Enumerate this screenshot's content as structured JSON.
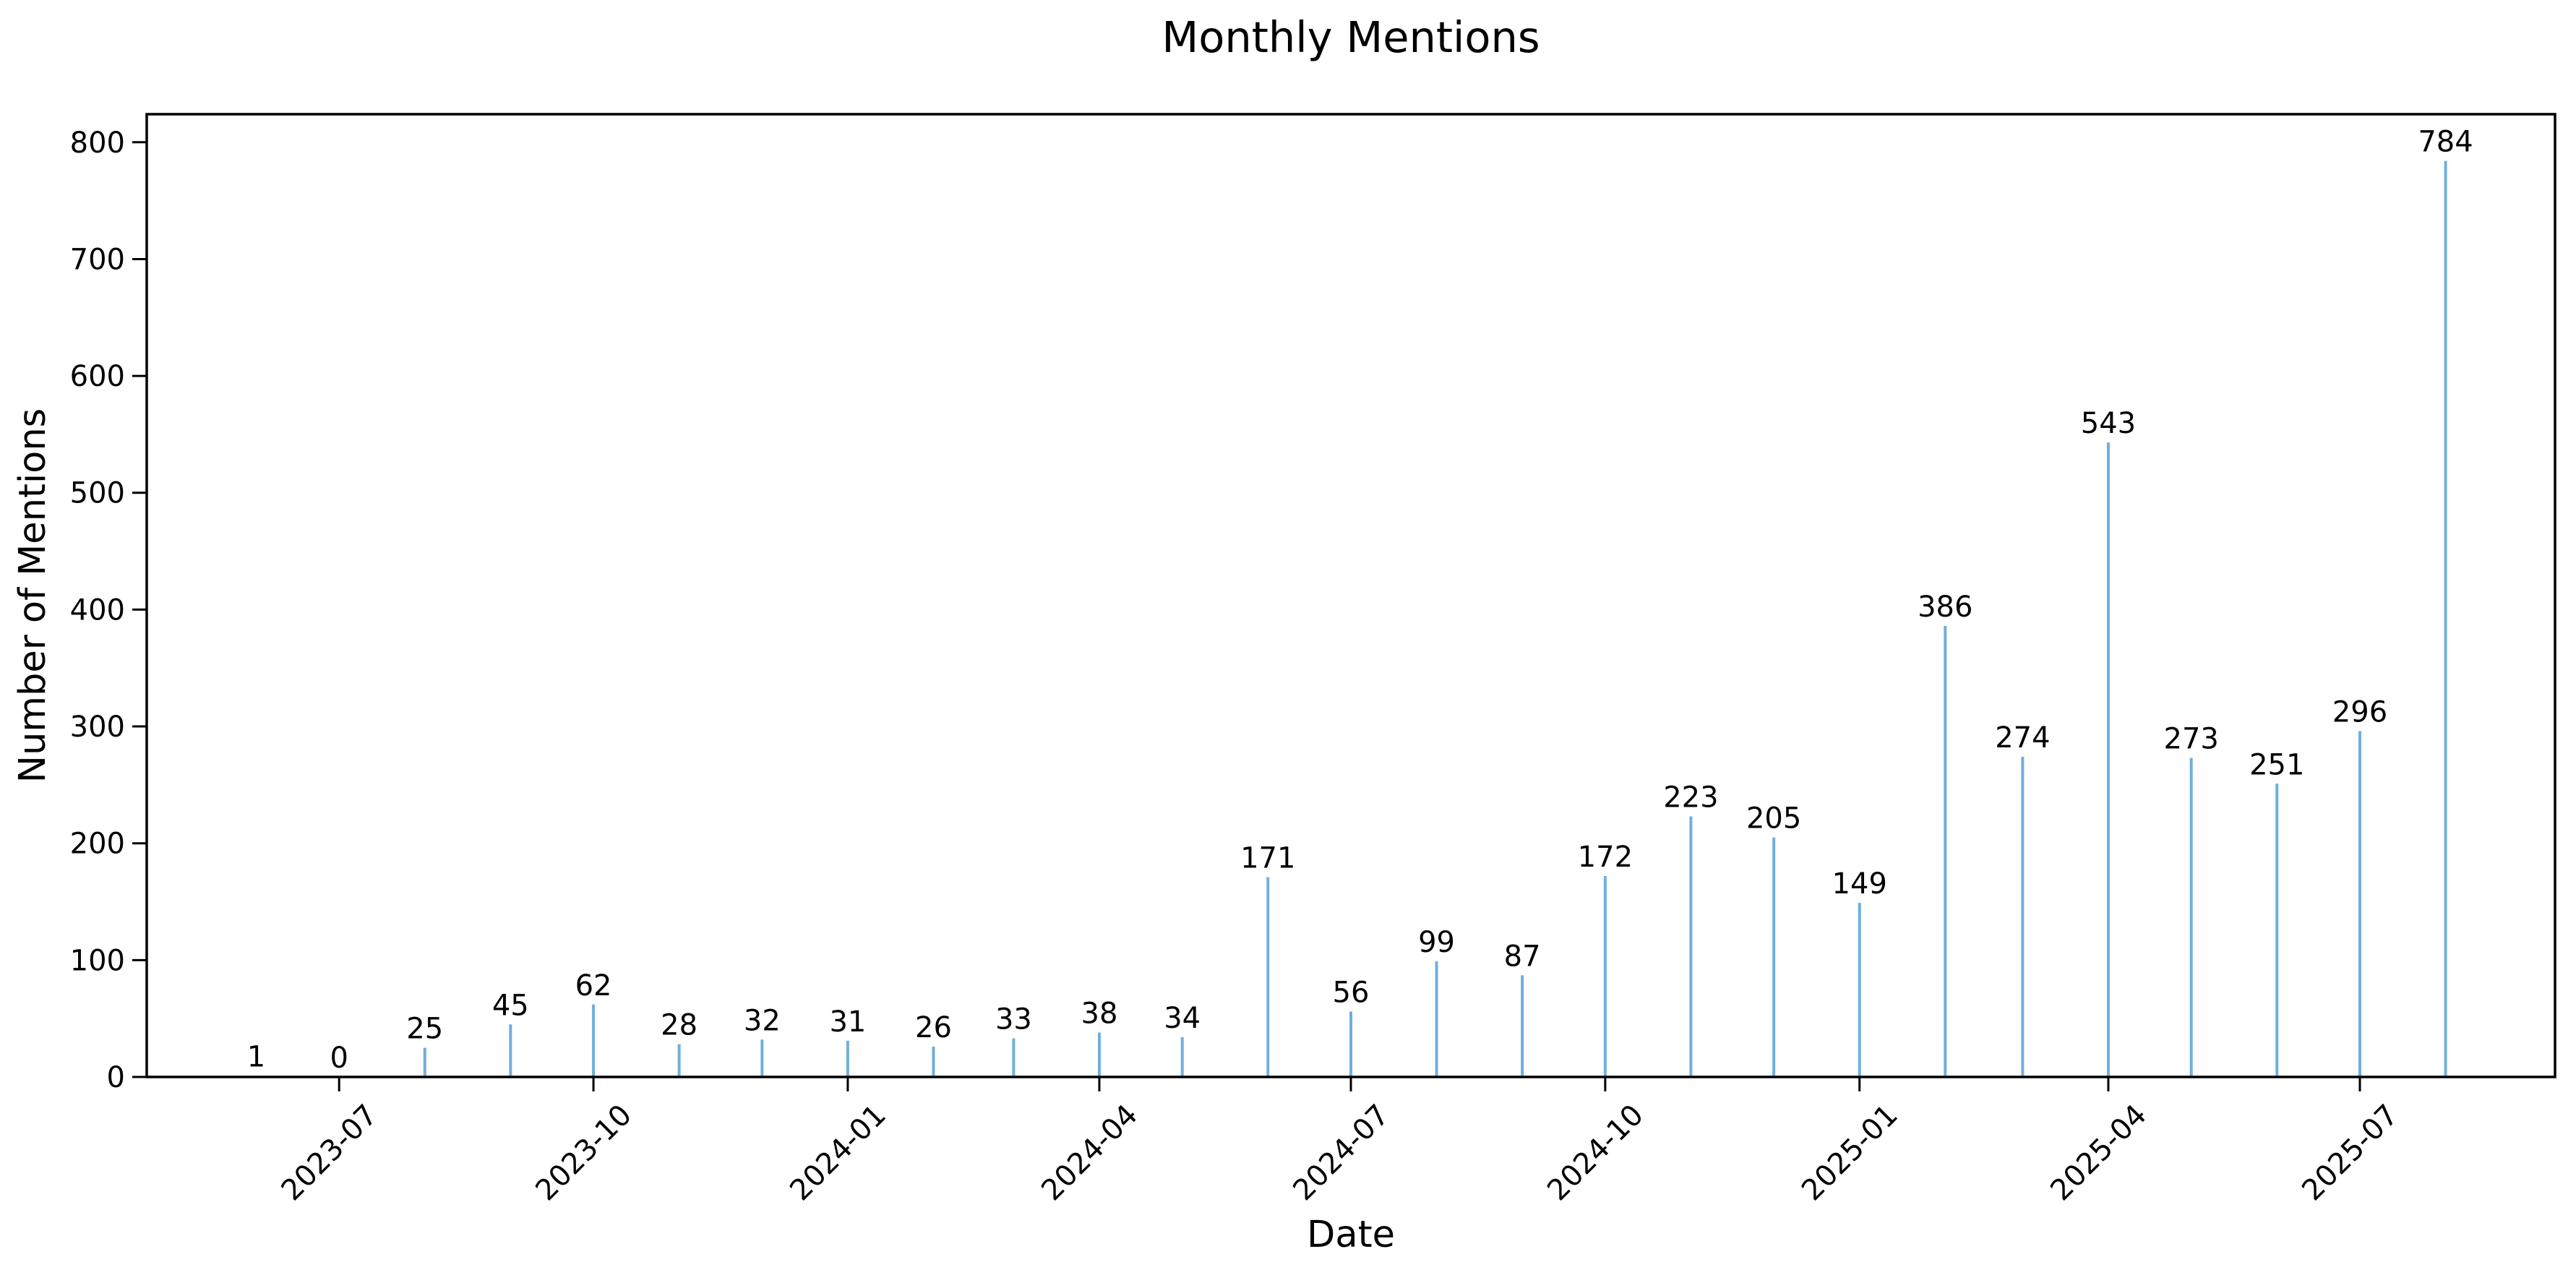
{
  "page": {
    "background_color": "#ffffff"
  },
  "chart_data": {
    "type": "bar",
    "title": "Monthly Mentions",
    "xlabel": "Date",
    "ylabel": "Number of Mentions",
    "categories": [
      "2023-06",
      "2023-07",
      "2023-08",
      "2023-09",
      "2023-10",
      "2023-11",
      "2023-12",
      "2024-01",
      "2024-02",
      "2024-03",
      "2024-04",
      "2024-05",
      "2024-06",
      "2024-07",
      "2024-08",
      "2024-09",
      "2024-10",
      "2024-11",
      "2024-12",
      "2025-01",
      "2025-02",
      "2025-03",
      "2025-04",
      "2025-05",
      "2025-06",
      "2025-07",
      "2025-08"
    ],
    "values": [
      1,
      0,
      25,
      45,
      62,
      28,
      32,
      31,
      26,
      33,
      38,
      34,
      171,
      56,
      99,
      87,
      172,
      223,
      205,
      149,
      386,
      274,
      543,
      273,
      251,
      296,
      784
    ],
    "bar_value_labels": [
      "1",
      "0",
      "25",
      "45",
      "62",
      "28",
      "32",
      "31",
      "26",
      "33",
      "38",
      "34",
      "171",
      "56",
      "99",
      "87",
      "172",
      "223",
      "205",
      "149",
      "386",
      "274",
      "543",
      "273",
      "251",
      "296",
      "784"
    ],
    "x_tick_labels": [
      "2023-07",
      "2023-10",
      "2024-01",
      "2024-04",
      "2024-07",
      "2024-10",
      "2025-01",
      "2025-04",
      "2025-07"
    ],
    "x_tick_rotation_deg": 45,
    "y_ticks": [
      0,
      100,
      200,
      300,
      400,
      500,
      600,
      700,
      800
    ],
    "ylim": [
      0,
      824
    ],
    "grid": false,
    "legend": null,
    "bar_color": "#6fafdc",
    "axis_color": "#000000",
    "text_color": "#000000"
  }
}
